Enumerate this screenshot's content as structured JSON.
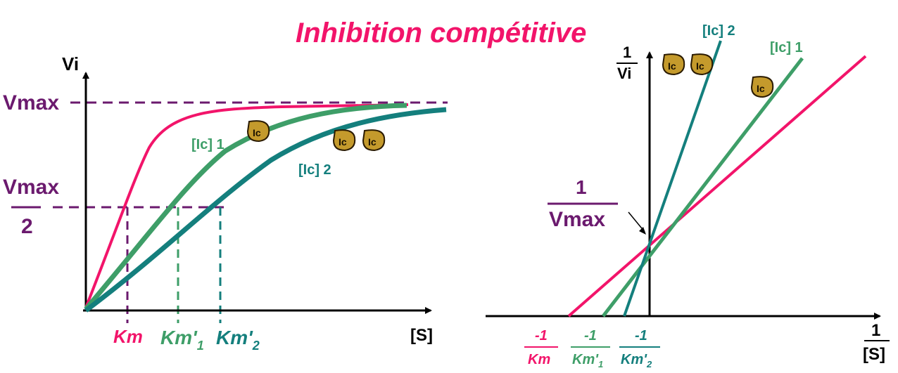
{
  "title": "Inhibition compétitive",
  "colors": {
    "pink": "#f2146a",
    "green": "#3e9e68",
    "teal": "#147f7d",
    "purple": "#6b1a6e",
    "black": "#000000",
    "icon_fill": "#c49a2c"
  },
  "inhibitor_icon_text": "Ic",
  "left_chart": {
    "y_axis_label": "Vi",
    "x_axis_label": "[S]",
    "vmax_label": "Vmax",
    "vmax_half_num": "Vmax",
    "vmax_half_den": "2",
    "km_label": "Km",
    "km1_label": "Km'",
    "km1_sub": "1",
    "km2_label": "Km'",
    "km2_sub": "2",
    "curve1_label": "[Ic] 1",
    "curve2_label": "[Ic] 2"
  },
  "right_chart": {
    "y_axis_num": "1",
    "y_axis_den": "Vi",
    "x_axis_num": "1",
    "x_axis_den": "[S]",
    "intercept_num": "1",
    "intercept_den": "Vmax",
    "line1_label": "[Ic] 1",
    "line2_label": "[Ic] 2",
    "xint_km_num": "-1",
    "xint_km_den": "Km",
    "xint_km1_num": "-1",
    "xint_km1_den": "Km'",
    "xint_km1_sub": "1",
    "xint_km2_num": "-1",
    "xint_km2_den": "Km'",
    "xint_km2_sub": "2"
  }
}
